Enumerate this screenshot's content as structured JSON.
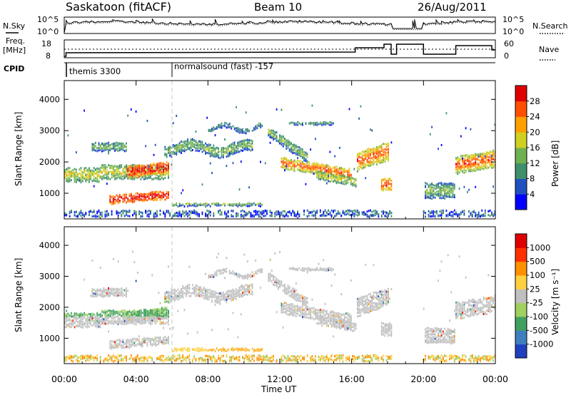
{
  "header": {
    "station": "Saskatoon (fitACF)",
    "beam": "Beam 10",
    "date": "26/Aug/2011"
  },
  "panels": {
    "nsky": {
      "left_label": "N.Sky",
      "right_label": "N.Search",
      "left_ticks": [
        "10^5",
        "10^0"
      ],
      "right_ticks": [
        "10^5",
        "10^0"
      ]
    },
    "freq": {
      "left_label_line1": "Freq.",
      "left_label_line2": "[MHz]",
      "left_ticks": [
        "18",
        "8"
      ],
      "right_label": "Nave",
      "right_ticks": [
        "60",
        "0"
      ]
    },
    "cpid": {
      "label": "CPID",
      "segments": [
        {
          "name": "themis 3300",
          "start_hour": 0
        },
        {
          "name": "normalsound (fast) -157",
          "start_hour": 6
        }
      ]
    }
  },
  "chart_data": [
    {
      "type": "heatmap",
      "title": "",
      "ylabel": "Slant Range [km]",
      "xlabel": "Time UT",
      "ylim": [
        180,
        4600
      ],
      "yticks": [
        1000,
        2000,
        3000,
        4000
      ],
      "colorbar": {
        "label": "Power [dB]",
        "ticks": [
          4,
          8,
          12,
          16,
          20,
          24,
          28
        ],
        "range": [
          0,
          32
        ],
        "colors": [
          "#0000ff",
          "#2050c0",
          "#3f8f6a",
          "#6fb050",
          "#d0d020",
          "#ffa000",
          "#ff5000",
          "#e00000"
        ]
      }
    },
    {
      "type": "heatmap",
      "title": "",
      "ylabel": "Slant Range [km]",
      "xlabel": "Time UT",
      "ylim": [
        180,
        4600
      ],
      "yticks": [
        1000,
        2000,
        3000,
        4000
      ],
      "colorbar": {
        "label": "Velocity [m s⁻¹]",
        "ticks": [
          "1000",
          "500",
          "100",
          "25",
          "-25",
          "-100",
          "-500",
          "-1000"
        ],
        "colors": [
          "#2040c0",
          "#3f7fbf",
          "#40a060",
          "#a0d060",
          "#c0c0c0",
          "#ffd040",
          "#ff9000",
          "#ff3000",
          "#e00000"
        ]
      }
    }
  ],
  "time_axis": {
    "label": "Time UT",
    "ticks": [
      "00:00",
      "04:00",
      "08:00",
      "12:00",
      "16:00",
      "20:00",
      "00:00"
    ],
    "range_hours": [
      0,
      24
    ]
  }
}
